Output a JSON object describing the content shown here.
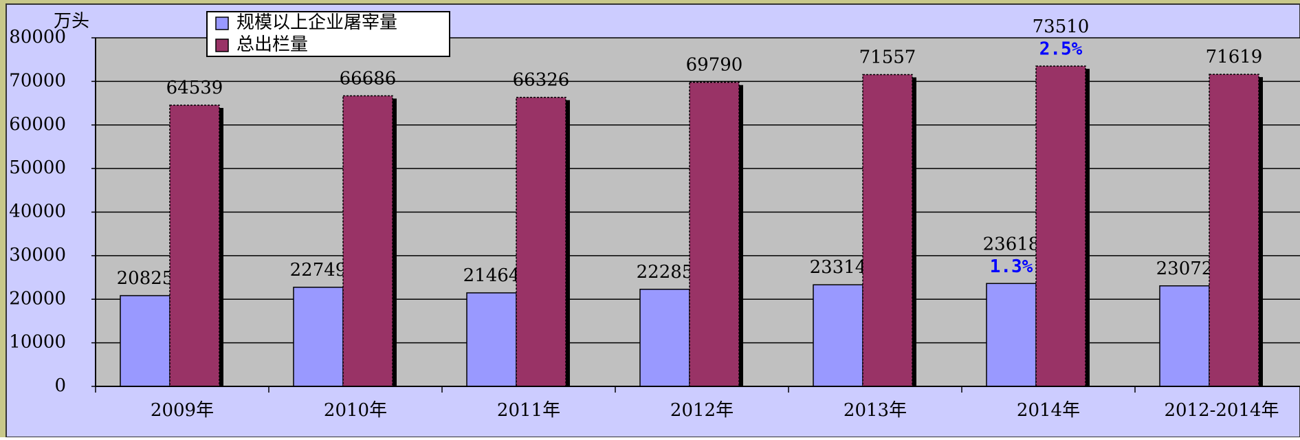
{
  "chart_data": {
    "type": "bar",
    "unit_label": "万头",
    "categories": [
      "2009年",
      "2010年",
      "2011年",
      "2012年",
      "2013年",
      "2014年",
      "2012-2014年"
    ],
    "series": [
      {
        "name": "规模以上企业屠宰量",
        "color": "#9999ff",
        "values": [
          20825,
          22749,
          21464,
          22285,
          23314,
          23618,
          23072
        ]
      },
      {
        "name": "总出栏量",
        "color": "#993366",
        "values": [
          64539,
          66686,
          66326,
          69790,
          71557,
          73510,
          71619
        ]
      }
    ],
    "annotations": [
      "1.3%",
      "2.5%"
    ],
    "ylim": [
      0,
      80000
    ],
    "yticks": [
      0,
      10000,
      20000,
      30000,
      40000,
      50000,
      60000,
      70000,
      80000
    ],
    "grid": true
  }
}
